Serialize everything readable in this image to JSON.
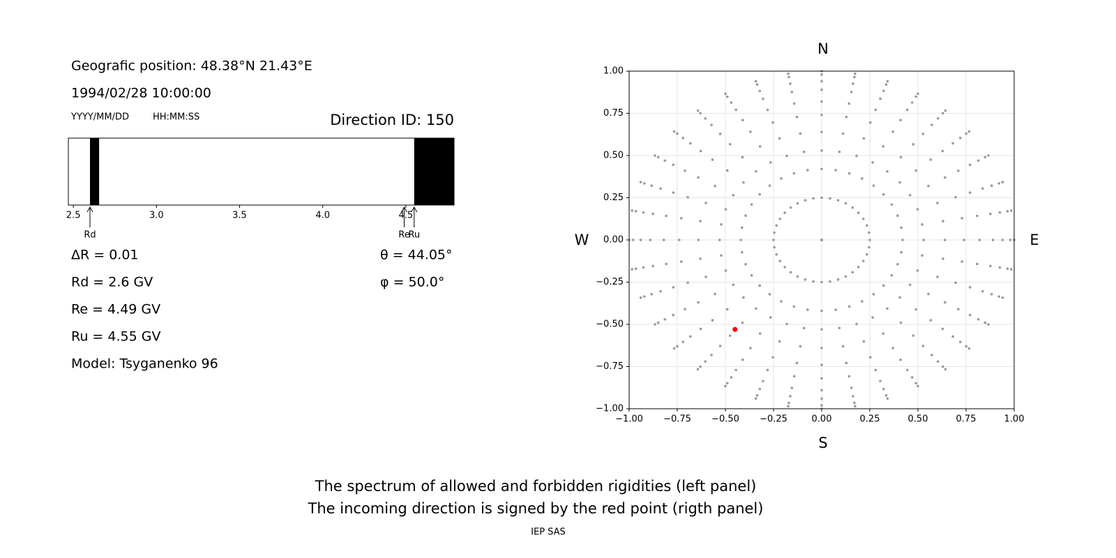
{
  "header": {
    "position": "Geografic position: 48.38°N 21.43°E",
    "datetime": "1994/02/28 10:00:00",
    "date_format": "YYYY/MM/DD",
    "time_format": "HH:MM:SS",
    "direction": "Direction ID: 150"
  },
  "info": [
    "ΔR = 0.01",
    "Rd = 2.6 GV",
    "Re = 4.49 GV",
    "Ru = 4.55 GV",
    "Model: Tsyganenko 96"
  ],
  "angles": [
    "θ = 44.05°",
    "φ = 50.0°"
  ],
  "caption": [
    "The spectrum of allowed and forbidden rigidities (left panel)",
    "The incoming direction is signed by the red point (rigth panel)"
  ],
  "footer": "IEP SAS",
  "chart_data": [
    {
      "type": "spectrum",
      "xlim": [
        2.47,
        4.79
      ],
      "xticks": [
        2.5,
        {
          "value": 3,
          "label": "3.0"
        },
        3.5,
        {
          "value": 4,
          "label": "4.0"
        },
        4.5
      ],
      "bands": [
        [
          2.6,
          2.655
        ],
        [
          4.55,
          4.79
        ]
      ],
      "color": "#000000",
      "markers": [
        {
          "label": "Rd",
          "value": 2.6
        },
        {
          "label": "Re",
          "value": 4.49
        },
        {
          "label": "Ru",
          "value": 4.55
        }
      ]
    },
    {
      "type": "polar-scatter",
      "xlim": [
        -1,
        1
      ],
      "ylim": [
        -1,
        1
      ],
      "xticks": [
        {
          "value": -1,
          "label": "−1.00"
        },
        {
          "value": -0.75,
          "label": "−0.75"
        },
        {
          "value": -0.5,
          "label": "−0.50"
        },
        {
          "value": -0.25,
          "label": "−0.25"
        },
        {
          "value": 0,
          "label": "0.00"
        },
        {
          "value": 0.25,
          "label": "0.25"
        },
        {
          "value": 0.5,
          "label": "0.50"
        },
        {
          "value": 0.75,
          "label": "0.75"
        },
        {
          "value": 1,
          "label": "1.00"
        }
      ],
      "yticks": [
        {
          "value": -1,
          "label": "−1.00"
        },
        {
          "value": -0.75,
          "label": "−0.75"
        },
        {
          "value": -0.5,
          "label": "−0.50"
        },
        {
          "value": -0.25,
          "label": "−0.25"
        },
        {
          "value": 0,
          "label": "0.00"
        },
        {
          "value": 0.25,
          "label": "0.25"
        },
        {
          "value": 0.5,
          "label": "0.50"
        },
        {
          "value": 0.75,
          "label": "0.75"
        },
        {
          "value": 1,
          "label": "1.00"
        }
      ],
      "grid": true,
      "color": "#999999",
      "radii": [
        0,
        0.25,
        0.42,
        0.53,
        0.64,
        0.74,
        0.82,
        0.89,
        0.94,
        0.98,
        1
      ],
      "azimuths": [
        0,
        10,
        20,
        30,
        40,
        50,
        60,
        70,
        80,
        90,
        100,
        110,
        120,
        130,
        140,
        150,
        160,
        170,
        180,
        190,
        200,
        210,
        220,
        230,
        240,
        250,
        260,
        270,
        280,
        290,
        300,
        310,
        320,
        330,
        340,
        350
      ],
      "highlight": {
        "x": -0.45,
        "y": -0.53,
        "color": "#ff0000"
      },
      "directions": {
        "top": "N",
        "bottom": "S",
        "left": "W",
        "right": "E"
      }
    }
  ]
}
